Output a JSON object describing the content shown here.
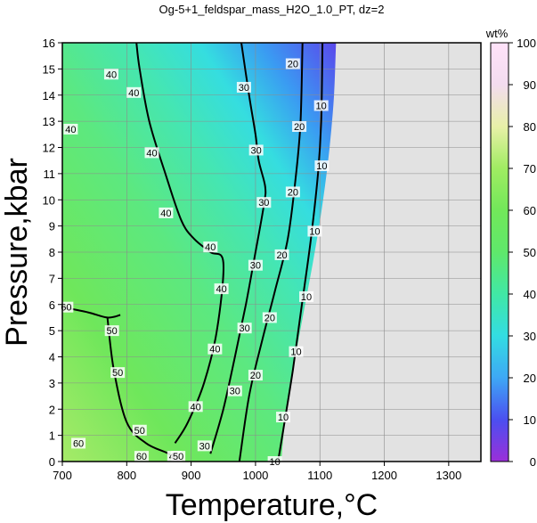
{
  "chart_data": {
    "type": "heatmap",
    "title": "Og-5+1_feldspar_mass_H2O_1.0_PT, dz=2",
    "xlabel": "Temperature,°C",
    "ylabel": "Pressure,kbar",
    "xlim": [
      700,
      1350
    ],
    "ylim": [
      0,
      16
    ],
    "x_ticks": [
      700,
      800,
      900,
      1000,
      1100,
      1200,
      1300
    ],
    "y_ticks": [
      0,
      1,
      2,
      3,
      4,
      5,
      6,
      7,
      8,
      9,
      10,
      11,
      12,
      13,
      14,
      15,
      16
    ],
    "grid": true,
    "no_data_color": "#e2e2e2",
    "colorbar": {
      "label": "wt%",
      "range": [
        0,
        100
      ],
      "ticks": [
        0,
        10,
        20,
        30,
        40,
        50,
        60,
        70,
        80,
        90,
        100
      ],
      "colors": [
        "#9b2fd8",
        "#4b4ff0",
        "#3ea8f5",
        "#33dde2",
        "#41e8a5",
        "#5fe86b",
        "#72e85a",
        "#a0ec62",
        "#e8f0a8",
        "#f3dcef",
        "#ffe2f9"
      ]
    },
    "stability_limit": [
      {
        "T": 1125,
        "P": 16
      },
      {
        "T": 1122,
        "P": 14
      },
      {
        "T": 1115,
        "P": 12
      },
      {
        "T": 1105,
        "P": 10
      },
      {
        "T": 1092,
        "P": 8
      },
      {
        "T": 1077,
        "P": 6
      },
      {
        "T": 1062,
        "P": 4
      },
      {
        "T": 1048,
        "P": 2
      },
      {
        "T": 1040,
        "P": 0
      }
    ],
    "contours": [
      {
        "value": 10,
        "points": [
          [
            1035,
            0
          ],
          [
            1045,
            1.5
          ],
          [
            1058,
            3.5
          ],
          [
            1072,
            6
          ],
          [
            1086,
            8.5
          ],
          [
            1097,
            11
          ],
          [
            1102,
            13
          ],
          [
            1104,
            16
          ]
        ],
        "labels": [
          {
            "T": 1030,
            "P": 0,
            "text": "10"
          },
          {
            "T": 1043,
            "P": 1.7,
            "text": "10"
          },
          {
            "T": 1063,
            "P": 4.2,
            "text": "10"
          },
          {
            "T": 1079,
            "P": 6.3,
            "text": "10"
          },
          {
            "T": 1092,
            "P": 8.8,
            "text": "10"
          },
          {
            "T": 1103,
            "P": 11.3,
            "text": "10"
          },
          {
            "T": 1102,
            "P": 13.6,
            "text": "10"
          }
        ]
      },
      {
        "value": 20,
        "points": [
          [
            975,
            0
          ],
          [
            990,
            2.5
          ],
          [
            1010,
            4.6
          ],
          [
            1030,
            6.5
          ],
          [
            1050,
            8.5
          ],
          [
            1063,
            11
          ],
          [
            1070,
            13
          ],
          [
            1073,
            16
          ]
        ],
        "labels": [
          {
            "T": 1000,
            "P": 3.3,
            "text": "20"
          },
          {
            "T": 1022,
            "P": 5.5,
            "text": "20"
          },
          {
            "T": 1041,
            "P": 7.9,
            "text": "20"
          },
          {
            "T": 1058,
            "P": 10.3,
            "text": "20"
          },
          {
            "T": 1068,
            "P": 12.8,
            "text": "20"
          },
          {
            "T": 1058,
            "P": 15.2,
            "text": "20"
          }
        ]
      },
      {
        "value": 30,
        "points": [
          [
            930,
            0.3
          ],
          [
            950,
            2
          ],
          [
            968,
            4
          ],
          [
            985,
            6
          ],
          [
            1000,
            8
          ],
          [
            1013,
            9.8
          ],
          [
            1015,
            10.5
          ],
          [
            1005,
            11.5
          ],
          [
            1000,
            12.5
          ],
          [
            990,
            14
          ],
          [
            978,
            16
          ]
        ],
        "labels": [
          {
            "T": 921,
            "P": 0.6,
            "text": "30"
          },
          {
            "T": 968,
            "P": 2.7,
            "text": "30"
          },
          {
            "T": 983,
            "P": 5.1,
            "text": "30"
          },
          {
            "T": 1000,
            "P": 7.5,
            "text": "30"
          },
          {
            "T": 1013,
            "P": 9.9,
            "text": "30"
          },
          {
            "T": 1001,
            "P": 11.9,
            "text": "30"
          },
          {
            "T": 982,
            "P": 14.3,
            "text": "30"
          }
        ]
      },
      {
        "value": 40,
        "points": [
          [
            875,
            0.7
          ],
          [
            895,
            1.5
          ],
          [
            920,
            3
          ],
          [
            940,
            5
          ],
          [
            950,
            7.6
          ],
          [
            930,
            8
          ],
          [
            905,
            8.5
          ],
          [
            885,
            9.2
          ],
          [
            860,
            11
          ],
          [
            835,
            13
          ],
          [
            820,
            15
          ],
          [
            815,
            16
          ]
        ],
        "labels": [
          {
            "T": 874,
            "P": 0.2,
            "text": "40"
          },
          {
            "T": 907,
            "P": 2.1,
            "text": "40"
          },
          {
            "T": 937,
            "P": 4.3,
            "text": "40"
          },
          {
            "T": 947,
            "P": 6.6,
            "text": "40"
          },
          {
            "T": 930,
            "P": 8.2,
            "text": "40"
          },
          {
            "T": 861,
            "P": 9.5,
            "text": "40"
          },
          {
            "T": 839,
            "P": 11.8,
            "text": "40"
          },
          {
            "T": 811,
            "P": 14.1,
            "text": "40"
          },
          {
            "T": 776,
            "P": 14.8,
            "text": "40"
          },
          {
            "T": 713,
            "P": 12.7,
            "text": "40"
          }
        ]
      },
      {
        "value": 50,
        "points": [
          [
            770,
            5.5
          ],
          [
            780,
            3.5
          ],
          [
            800,
            1.5
          ],
          [
            830,
            0.7
          ],
          [
            865,
            0.3
          ],
          [
            880,
            0
          ]
        ],
        "labels": [
          {
            "T": 777,
            "P": 5.0,
            "text": "50"
          },
          {
            "T": 786,
            "P": 3.4,
            "text": "50"
          },
          {
            "T": 820,
            "P": 1.2,
            "text": "50"
          },
          {
            "T": 880,
            "P": 0.2,
            "text": "50"
          }
        ]
      },
      {
        "value": 60,
        "points": [
          [
            700,
            5.9
          ],
          [
            740,
            5.7
          ],
          [
            770,
            5.5
          ],
          [
            790,
            5.6
          ]
        ],
        "labels": [
          {
            "T": 706,
            "P": 5.9,
            "text": "60"
          },
          {
            "T": 725,
            "P": 0.7,
            "text": "60"
          },
          {
            "T": 823,
            "P": 0.2,
            "text": "60"
          }
        ]
      }
    ]
  }
}
